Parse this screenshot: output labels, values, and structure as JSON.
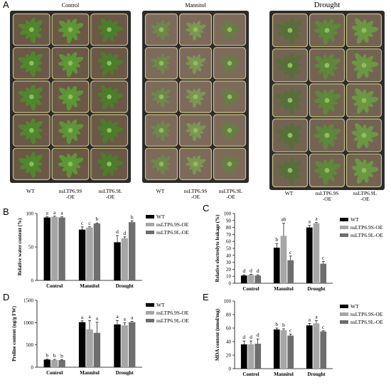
{
  "photos": {
    "letter": "A",
    "panels": [
      {
        "title": "Control",
        "labels": [
          "WT",
          "nsLTP6.9S\n-OE",
          "nsLTP6.9L\n-OE"
        ]
      },
      {
        "title": "Mannitol",
        "labels": [
          "WT",
          "nsLTP6.9S\n-OE",
          "nsLTP6.9L\n-OE"
        ]
      },
      {
        "title": "Drought",
        "labels": [
          "WT",
          "nsLTP6.9S\n-OE",
          "nsLTP6.9L\n-OE"
        ]
      }
    ]
  },
  "colors": {
    "WT": "#000000",
    "S": "#a6a6a6",
    "L": "#6e6e6e",
    "plant": "#5f8f3c",
    "soil": "#7a6552",
    "tray": "#2b2b2b"
  },
  "chart_data": [
    {
      "letter": "B",
      "type": "bar",
      "ylabel": "Relative water content (%)",
      "ylim": [
        0,
        100
      ],
      "yticks": [
        0,
        50,
        100
      ],
      "categories": [
        "Control",
        "Mannitol",
        "Drought"
      ],
      "legend": [
        "WT",
        "nsLTP6.9S-OE",
        "nsLTP6.9L-OE"
      ],
      "series": [
        {
          "name": "WT",
          "values": [
            94,
            76,
            57
          ],
          "errors": [
            1,
            4,
            10
          ],
          "letters": [
            "a",
            "c",
            "d"
          ]
        },
        {
          "name": "nsLTP6.9S-OE",
          "values": [
            95,
            79,
            63
          ],
          "errors": [
            1,
            1,
            2
          ],
          "letters": [
            "a",
            "c",
            "d"
          ]
        },
        {
          "name": "nsLTP6.9L-OE",
          "values": [
            94,
            85,
            87
          ],
          "errors": [
            1,
            1,
            2
          ],
          "letters": [
            "a",
            "b",
            "b"
          ]
        }
      ]
    },
    {
      "letter": "C",
      "type": "bar",
      "ylabel": "Relative electrolyte leakage (%)",
      "ylim": [
        0,
        100
      ],
      "yticks": [
        0,
        10,
        20,
        30,
        40,
        50,
        60,
        70,
        80,
        90,
        100
      ],
      "categories": [
        "Control",
        "Mannitol",
        "Drought"
      ],
      "legend": [
        "WT",
        "nsLTP6.9S-OE",
        "nsLTP6.9L-OE"
      ],
      "series": [
        {
          "name": "WT",
          "values": [
            11,
            51,
            80
          ],
          "errors": [
            1,
            6,
            3
          ],
          "letters": [
            "d",
            "b",
            "a"
          ]
        },
        {
          "name": "nsLTP6.9S-OE",
          "values": [
            12,
            68,
            86
          ],
          "errors": [
            1,
            18,
            1
          ],
          "letters": [
            "d",
            "ab",
            "a"
          ]
        },
        {
          "name": "nsLTP6.9L-OE",
          "values": [
            11,
            33,
            28
          ],
          "errors": [
            1,
            6,
            3
          ],
          "letters": [
            "d",
            "c",
            "c"
          ]
        }
      ]
    },
    {
      "letter": "D",
      "type": "bar",
      "ylabel": "Proline content (ug/g FW)",
      "ylim": [
        0,
        1500
      ],
      "yticks": [
        0,
        500,
        1000,
        1500
      ],
      "categories": [
        "Control",
        "Mannitol",
        "Drought"
      ],
      "legend": [
        "WT",
        "nsLTP6.9S-OE",
        "nsLTP6.9L-OE"
      ],
      "series": [
        {
          "name": "WT",
          "values": [
            170,
            1010,
            960
          ],
          "errors": [
            10,
            30,
            90
          ],
          "letters": [
            "b",
            "a",
            "a"
          ]
        },
        {
          "name": "nsLTP6.9S-OE",
          "values": [
            165,
            850,
            940
          ],
          "errors": [
            10,
            200,
            60
          ],
          "letters": [
            "b",
            "a",
            "a"
          ]
        },
        {
          "name": "nsLTP6.9L-OE",
          "values": [
            160,
            770,
            1010
          ],
          "errors": [
            10,
            240,
            20
          ],
          "letters": [
            "b",
            "a",
            "a"
          ]
        }
      ]
    },
    {
      "letter": "E",
      "type": "bar",
      "ylabel": "MDA content (nmol/mg)",
      "ylim": [
        0,
        100
      ],
      "yticks": [
        0,
        20,
        40,
        60,
        80,
        100
      ],
      "categories": [
        "Control",
        "Mannitol",
        "Drought"
      ],
      "legend": [
        "WT",
        "nsLTP6.9S-OE",
        "nsLTP6.9L-OE"
      ],
      "series": [
        {
          "name": "WT",
          "values": [
            36,
            58,
            64
          ],
          "errors": [
            5,
            2,
            3
          ],
          "letters": [
            "d",
            "b",
            "a"
          ]
        },
        {
          "name": "nsLTP6.9S-OE",
          "values": [
            36,
            57,
            67
          ],
          "errors": [
            5,
            2,
            4
          ],
          "letters": [
            "d",
            "b",
            "a"
          ]
        },
        {
          "name": "nsLTP6.9L-OE",
          "values": [
            37,
            49,
            55
          ],
          "errors": [
            7,
            2,
            1
          ],
          "letters": [
            "d",
            "c",
            "c"
          ]
        }
      ]
    }
  ]
}
